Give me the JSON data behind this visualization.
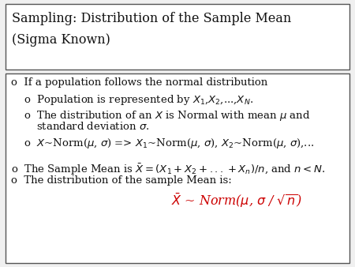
{
  "title_line1": "Sampling: Distribution of the Sample Mean",
  "title_line2": "(Sigma Known)",
  "title_fontsize": 11.5,
  "body_fontsize": 9.5,
  "formula_fontsize": 11.5,
  "bg_color": "#f0f0f0",
  "box_color": "#ffffff",
  "border_color": "#555555",
  "text_color": "#111111",
  "red_color": "#cc0000"
}
